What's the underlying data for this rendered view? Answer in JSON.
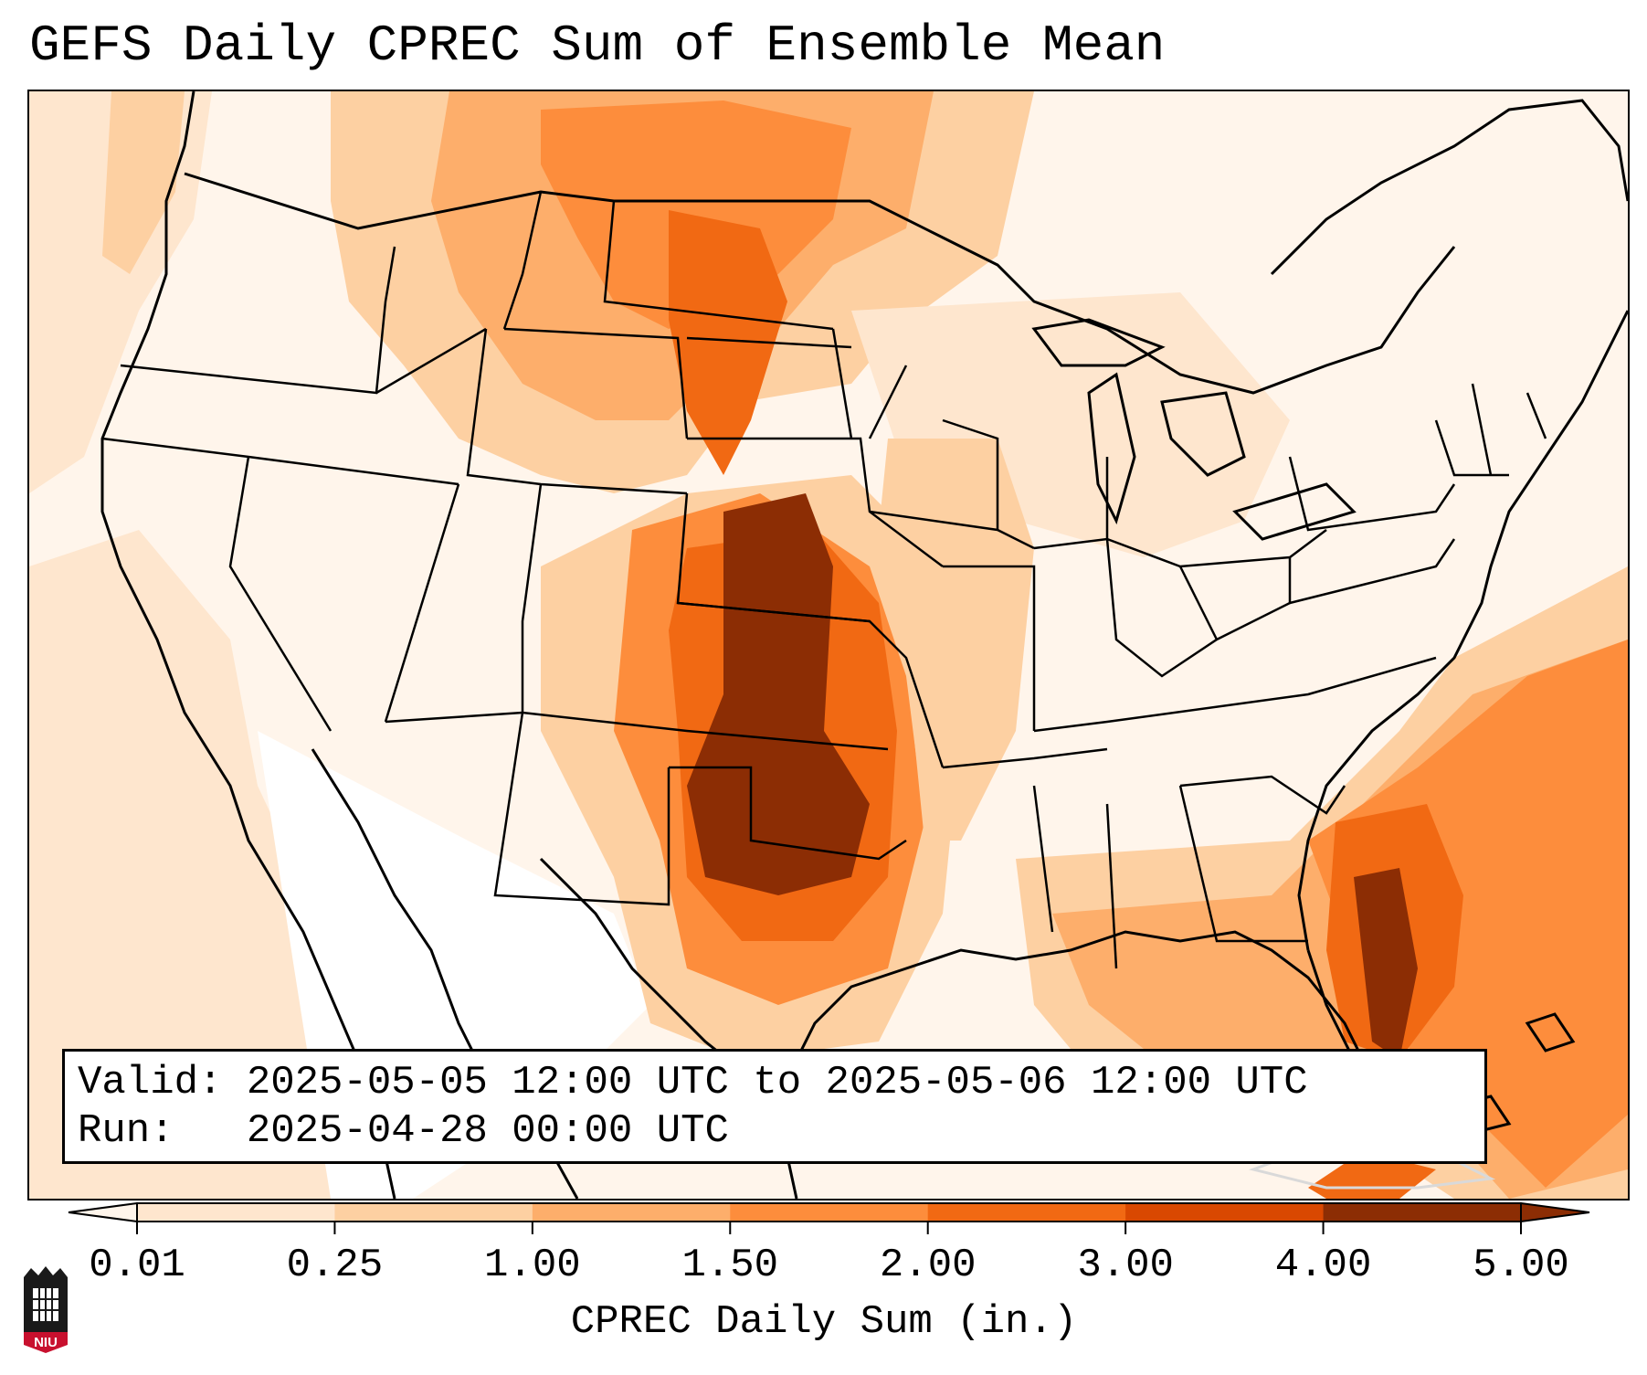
{
  "title": "GEFS Daily CPREC Sum of Ensemble Mean",
  "info": {
    "valid_line": "Valid: 2025-05-05 12:00 UTC to 2025-05-06 12:00 UTC",
    "run_line": "Run:   2025-04-28 00:00 UTC"
  },
  "colorbar": {
    "title": "CPREC Daily Sum (in.)",
    "levels": [
      0.01,
      0.25,
      1.0,
      1.5,
      2.0,
      3.0,
      4.0,
      5.0
    ],
    "tick_labels": [
      "0.01",
      "0.25",
      "1.00",
      "1.50",
      "2.00",
      "3.00",
      "4.00",
      "5.00"
    ],
    "colors": [
      "#fff5eb",
      "#fee6ce",
      "#fdd0a2",
      "#fdae6b",
      "#fd8d3c",
      "#f16913",
      "#d94801",
      "#8c2d04"
    ],
    "extend": "both"
  },
  "logo": {
    "text": "NIU",
    "colors": {
      "shield": "#c8102e",
      "dark": "#1a1a1a"
    }
  }
}
